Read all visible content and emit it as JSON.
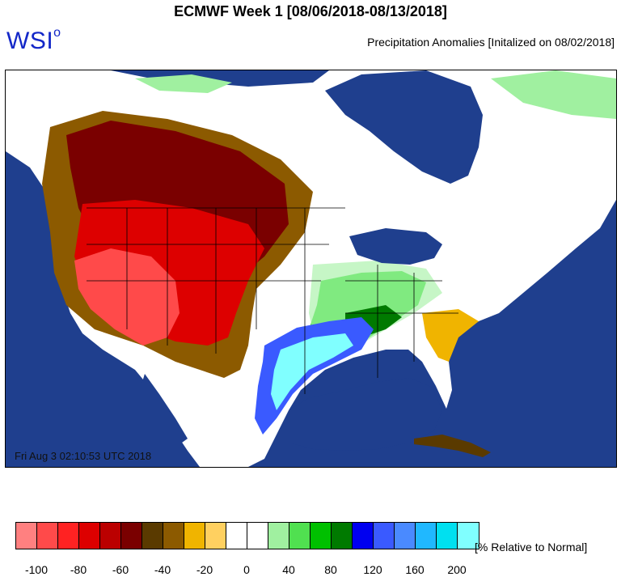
{
  "header": {
    "title": "ECMWF Week 1 [08/06/2018-08/13/2018]",
    "logo_text": "WSI",
    "logo_sup": "o",
    "subtitle": "Precipitation Anomalies [Initalized on 08/02/2018]"
  },
  "map": {
    "timestamp": "Fri Aug  3 02:10:53 UTC 2018",
    "ocean_color": "#1f3f8e"
  },
  "legend": {
    "units_label": "[% Relative to Normal]",
    "colors": [
      "#ff8080",
      "#ff4a4a",
      "#ff2222",
      "#dd0000",
      "#bb0000",
      "#7a0000",
      "#5a3a00",
      "#8c5a00",
      "#f0b400",
      "#ffd060",
      "#ffffff",
      "#ffffff",
      "#a0f0a0",
      "#50e050",
      "#00c000",
      "#007a00",
      "#0000f0",
      "#3a5aff",
      "#4a8aff",
      "#20b8ff",
      "#00e0f0",
      "#80ffff"
    ],
    "tick_labels": [
      "-100",
      "-80",
      "-60",
      "-40",
      "-20",
      "0",
      "40",
      "80",
      "120",
      "160",
      "200"
    ]
  }
}
